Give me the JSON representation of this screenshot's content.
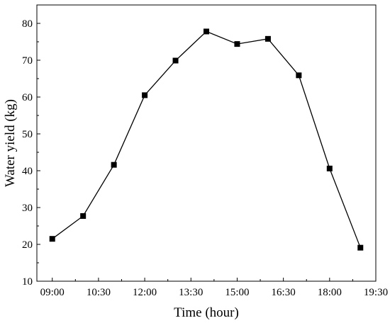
{
  "chart_data": {
    "type": "line",
    "title": "",
    "xlabel": "Time (hour)",
    "ylabel": "Water yield (kg)",
    "x": [
      "09:00",
      "10:00",
      "11:00",
      "12:00",
      "13:00",
      "14:00",
      "15:00",
      "16:00",
      "17:00",
      "18:00",
      "19:00"
    ],
    "x_tick_labels": [
      "09:00",
      "10:30",
      "12:00",
      "13:30",
      "15:00",
      "16:30",
      "18:00",
      "19:30"
    ],
    "xlim": [
      "08:30",
      "19:30"
    ],
    "y_ticks": [
      "10",
      "20",
      "30",
      "40",
      "50",
      "60",
      "70",
      "80"
    ],
    "ylim": [
      10,
      85
    ],
    "series": [
      {
        "values": [
          21.5,
          27.7,
          41.6,
          60.5,
          69.9,
          77.8,
          74.4,
          75.8,
          65.9,
          40.6,
          19.1
        ]
      }
    ],
    "color": "#000000",
    "marker": "square",
    "grid": false,
    "legend": "none"
  }
}
